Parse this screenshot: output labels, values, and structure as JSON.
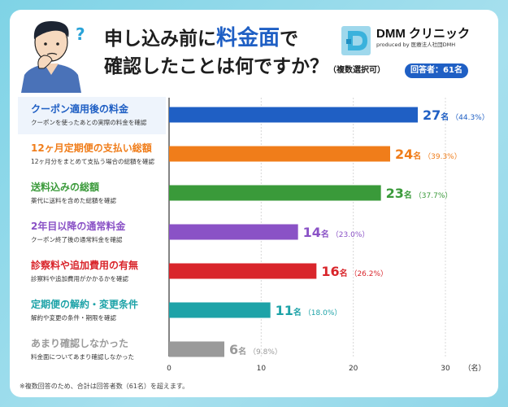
{
  "header": {
    "title_line1_pre": "申し込み前に",
    "title_line1_hl": "料金面",
    "title_line1_post": "で",
    "title_line2": "確認したことは何ですか？",
    "title_line2_small": "（複数選択可）",
    "respondents": "回答者：61名"
  },
  "brand": {
    "name": "DMM クリニック",
    "sub": "produced by 医療法人社団DMH"
  },
  "footnote": "※複数回答のため、合計は回答者数（61名）を超えます。",
  "chart_data": {
    "type": "bar",
    "orientation": "horizontal",
    "categories": [
      "クーポン適用後の料金",
      "12ヶ月定期便の支払い総額",
      "送料込みの総額",
      "2年目以降の通常料金",
      "診察料や追加費用の有無",
      "定期便の解約・変更条件",
      "あまり確認しなかった"
    ],
    "descriptions": [
      "クーポンを使ったあとの実際の料金を確認",
      "12ヶ月分をまとめて支払う場合の総額を確認",
      "薬代に送料を含めた総額を確認",
      "クーポン終了後の通常料金を確認",
      "診察料や追加費用がかかるかを確認",
      "解約や変更の条件・期限を確認",
      "料金面についてあまり確認しなかった"
    ],
    "values": [
      27,
      24,
      23,
      14,
      16,
      11,
      6
    ],
    "value_unit": "名",
    "percents": [
      "（44.3%）",
      "（39.3%）",
      "（37.7%）",
      "（23.0%）",
      "（26.2%）",
      "（18.0%）",
      "（9.8%）"
    ],
    "colors": [
      "#1f5fc4",
      "#f07d1a",
      "#3a9a3a",
      "#8a52c6",
      "#d9252b",
      "#1ea3a8",
      "#9a9a9a"
    ],
    "x_ticks": [
      "0",
      "10",
      "20",
      "30"
    ],
    "x_unit": "（名）",
    "xlim": [
      0,
      30
    ],
    "grid": true
  }
}
